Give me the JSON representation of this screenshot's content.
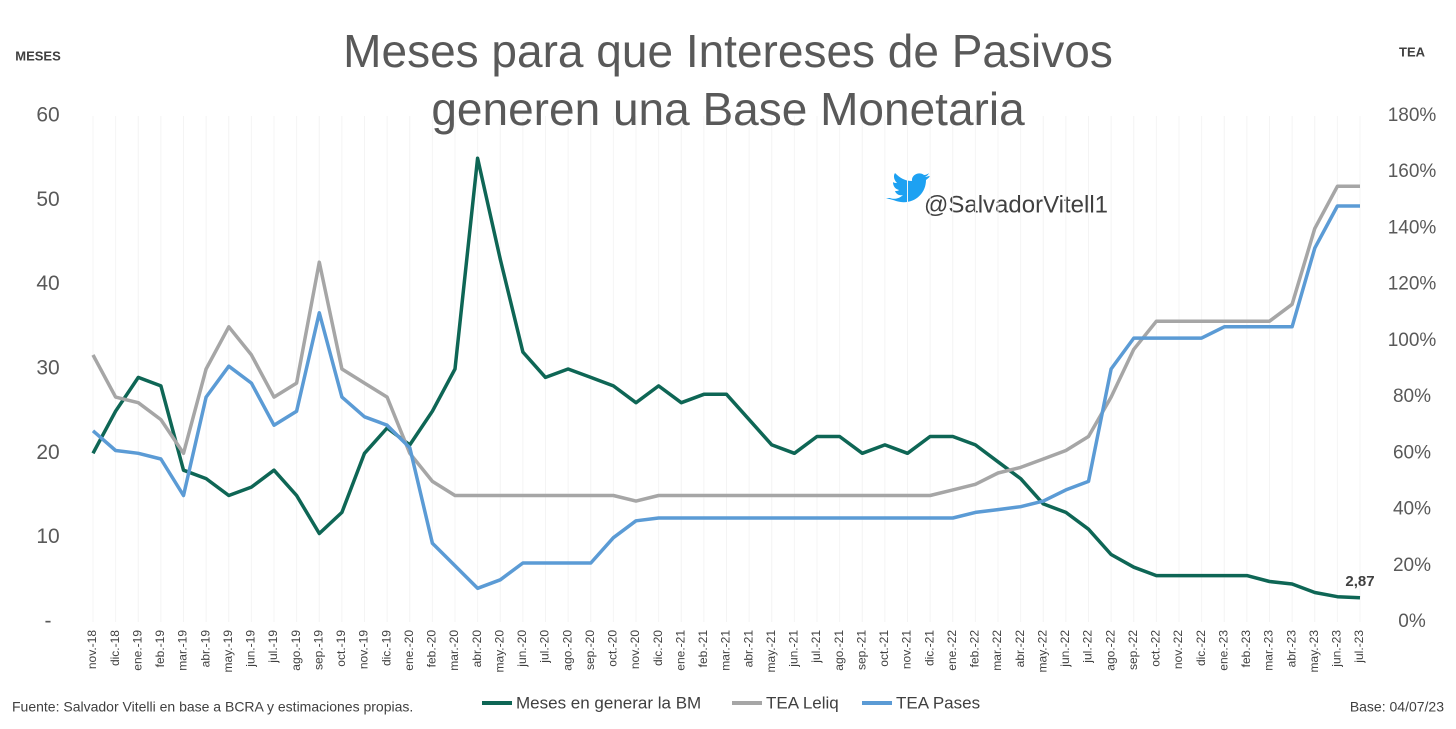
{
  "chart_data": {
    "type": "line",
    "title": "Meses para que Intereses de Pasivos generen una Base Monetaria",
    "y_label": "MESES",
    "y2_label": "TEA",
    "annotation": "@SalvadorVitell1",
    "source": "Fuente: Salvador Vitelli en base a BCRA y estimaciones propias.",
    "base_date": "Base: 04/07/23",
    "categories": [
      "nov.-18",
      "dic.-18",
      "ene.-19",
      "feb.-19",
      "mar.-19",
      "abr.-19",
      "may.-19",
      "jun.-19",
      "jul.-19",
      "ago.-19",
      "sep.-19",
      "oct.-19",
      "nov.-19",
      "dic.-19",
      "ene.-20",
      "feb.-20",
      "mar.-20",
      "abr.-20",
      "may.-20",
      "jun.-20",
      "jul.-20",
      "ago.-20",
      "sep.-20",
      "oct.-20",
      "nov.-20",
      "dic.-20",
      "ene.-21",
      "feb.-21",
      "mar.-21",
      "abr.-21",
      "may.-21",
      "jun.-21",
      "jul.-21",
      "ago.-21",
      "sep.-21",
      "oct.-21",
      "nov.-21",
      "dic.-21",
      "ene.-22",
      "feb.-22",
      "mar.-22",
      "abr.-22",
      "may.-22",
      "jun.-22",
      "jul.-22",
      "ago.-22",
      "sep.-22",
      "oct.-22",
      "nov.-22",
      "dic.-22",
      "ene.-23",
      "feb.-23",
      "mar.-23",
      "abr.-23",
      "may.-23",
      "jun.-23",
      "jul.-23"
    ],
    "series": [
      {
        "name": "Meses en generar la BM",
        "color": "#0e6655",
        "axis": "y",
        "values": [
          20,
          25,
          29,
          28,
          18,
          17,
          15,
          16,
          18,
          15,
          10.5,
          13,
          20,
          23,
          21,
          25,
          30,
          55,
          43,
          32,
          29,
          30,
          29,
          28,
          26,
          28,
          26,
          27,
          27,
          24,
          21,
          20,
          22,
          22,
          20,
          21,
          20,
          22,
          22,
          21,
          19,
          17,
          14,
          13,
          11,
          8,
          6.5,
          5.5,
          5.5,
          5.5,
          5.5,
          5.5,
          4.8,
          4.5,
          3.5,
          3,
          2.87
        ],
        "value_labels": [
          null,
          null,
          null,
          null,
          null,
          null,
          null,
          null,
          null,
          null,
          null,
          null,
          null,
          null,
          null,
          null,
          null,
          null,
          null,
          null,
          null,
          null,
          null,
          null,
          null,
          null,
          null,
          null,
          null,
          null,
          null,
          null,
          null,
          null,
          null,
          null,
          null,
          null,
          null,
          null,
          null,
          null,
          null,
          null,
          null,
          null,
          null,
          null,
          null,
          null,
          null,
          null,
          null,
          null,
          null,
          null,
          "2,87"
        ]
      },
      {
        "name": "TEA Leliq",
        "color": "#a6a6a6",
        "axis": "y2",
        "values": [
          95,
          80,
          78,
          72,
          60,
          90,
          105,
          95,
          80,
          85,
          128,
          90,
          85,
          80,
          60,
          50,
          45,
          45,
          45,
          45,
          45,
          45,
          45,
          45,
          43,
          45,
          45,
          45,
          45,
          45,
          45,
          45,
          45,
          45,
          45,
          45,
          45,
          45,
          47,
          49,
          53,
          55,
          58,
          61,
          66,
          80,
          97,
          107,
          107,
          107,
          107,
          107,
          107,
          113,
          140,
          155,
          155
        ]
      },
      {
        "name": "TEA Pases",
        "color": "#5b9bd5",
        "axis": "y2",
        "values": [
          68,
          61,
          60,
          58,
          45,
          80,
          91,
          85,
          70,
          75,
          110,
          80,
          73,
          70,
          62,
          28,
          20,
          12,
          15,
          21,
          21,
          21,
          21,
          30,
          36,
          37,
          37,
          37,
          37,
          37,
          37,
          37,
          37,
          37,
          37,
          37,
          37,
          37,
          37,
          39,
          40,
          41,
          43,
          47,
          50,
          90,
          101,
          101,
          101,
          101,
          105,
          105,
          105,
          105,
          133,
          148,
          148
        ]
      }
    ],
    "ylim": [
      0,
      60
    ],
    "yticks": [
      {
        "value": 0,
        "label": "-"
      },
      10,
      20,
      30,
      40,
      50,
      60
    ],
    "y2lim": [
      0,
      180
    ],
    "y2ticks": [
      {
        "value": 0,
        "label": "0%"
      },
      {
        "value": 20,
        "label": "20%"
      },
      {
        "value": 40,
        "label": "40%"
      },
      {
        "value": 60,
        "label": "60%"
      },
      {
        "value": 80,
        "label": "80%"
      },
      {
        "value": 100,
        "label": "100%"
      },
      {
        "value": 120,
        "label": "120%"
      },
      {
        "value": 140,
        "label": "140%"
      },
      {
        "value": 160,
        "label": "160%"
      },
      {
        "value": 180,
        "label": "180%"
      }
    ],
    "legend": "bottom"
  }
}
